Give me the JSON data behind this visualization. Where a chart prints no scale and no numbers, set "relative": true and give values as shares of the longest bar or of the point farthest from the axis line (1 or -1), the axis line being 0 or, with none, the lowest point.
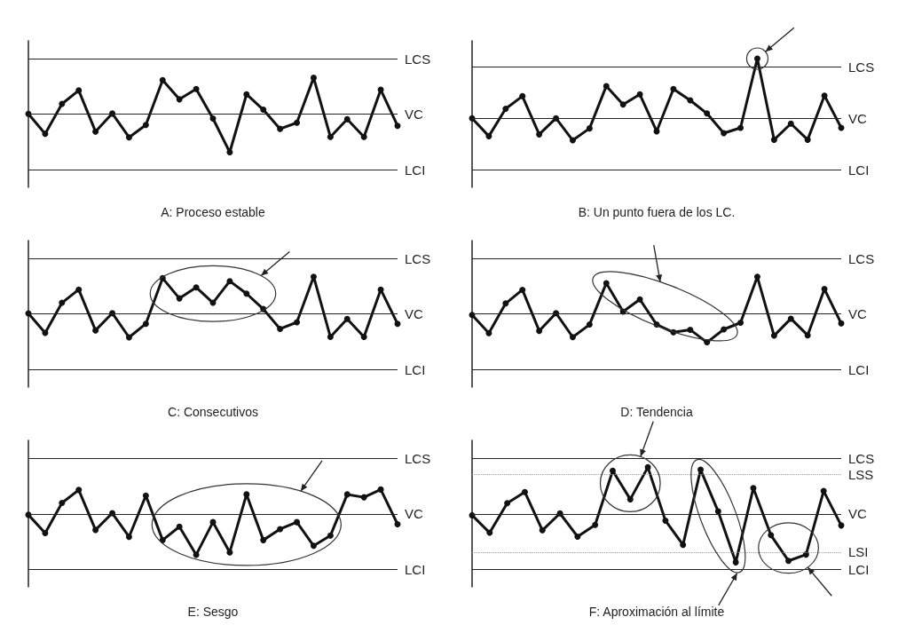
{
  "chart_data": [
    {
      "type": "line",
      "title": "A: Proceso estable",
      "relative": true,
      "marker": "circle",
      "color": "#111111",
      "categories": [
        null,
        null,
        null,
        null,
        null,
        null,
        null,
        null,
        null,
        null,
        null,
        null,
        null,
        null,
        null,
        null,
        null,
        null,
        null,
        null,
        null,
        null,
        null
      ],
      "values": [
        0,
        -0.52,
        0.26,
        0.61,
        -0.46,
        0.01,
        -0.61,
        -0.29,
        0.88,
        0.38,
        0.65,
        -0.12,
        -1,
        0.51,
        0.11,
        -0.39,
        -0.23,
        0.94,
        -0.6,
        -0.14,
        -0.6,
        0.63,
        -0.31
      ],
      "ref_lines": [
        {
          "axis": "y",
          "value": 1.44,
          "label": "LCS"
        },
        {
          "axis": "y",
          "value": 0,
          "label": "VC"
        },
        {
          "axis": "y",
          "value": -1.45,
          "label": "LCI"
        }
      ]
    },
    {
      "type": "line",
      "title": "B: Un punto fuera de los LC.",
      "relative": true,
      "marker": "circle",
      "color": "#111111",
      "categories": [
        null,
        null,
        null,
        null,
        null,
        null,
        null,
        null,
        null,
        null,
        null,
        null,
        null,
        null,
        null,
        null,
        null,
        null,
        null,
        null,
        null,
        null,
        null
      ],
      "values": [
        0,
        -0.3,
        0.16,
        0.37,
        -0.27,
        0,
        -0.37,
        -0.17,
        0.54,
        0.23,
        0.4,
        -0.22,
        0.49,
        0.3,
        0.08,
        -0.25,
        -0.16,
        1,
        -0.36,
        -0.09,
        -0.36,
        0.38,
        -0.16
      ],
      "ref_lines": [
        {
          "axis": "y",
          "value": 0.86,
          "label": "LCS"
        },
        {
          "axis": "y",
          "value": 0,
          "label": "VC"
        },
        {
          "axis": "y",
          "value": -0.86,
          "label": "LCI"
        }
      ]
    },
    {
      "type": "line",
      "title": "C: Consecutivos",
      "relative": true,
      "marker": "circle",
      "color": "#111111",
      "categories": [
        null,
        null,
        null,
        null,
        null,
        null,
        null,
        null,
        null,
        null,
        null,
        null,
        null,
        null,
        null,
        null,
        null,
        null,
        null,
        null,
        null,
        null,
        null
      ],
      "values": [
        0,
        -0.53,
        0.29,
        0.65,
        -0.46,
        0.01,
        -0.65,
        -0.28,
        0.96,
        0.41,
        0.71,
        0.29,
        0.88,
        0.54,
        0.12,
        -0.42,
        -0.24,
        1,
        -0.64,
        -0.15,
        -0.64,
        0.65,
        -0.28
      ],
      "ref_lines": [
        {
          "axis": "y",
          "value": 1.5,
          "label": "LCS"
        },
        {
          "axis": "y",
          "value": 0,
          "label": "VC"
        },
        {
          "axis": "y",
          "value": -1.52,
          "label": "LCI"
        }
      ]
    },
    {
      "type": "line",
      "title": "D: Tendencia",
      "relative": true,
      "marker": "circle",
      "color": "#111111",
      "categories": [
        null,
        null,
        null,
        null,
        null,
        null,
        null,
        null,
        null,
        null,
        null,
        null,
        null,
        null,
        null,
        null,
        null,
        null,
        null,
        null,
        null,
        null,
        null
      ],
      "values": [
        -0.03,
        -0.52,
        0.28,
        0.65,
        -0.46,
        0.02,
        -0.63,
        -0.29,
        0.83,
        0.06,
        0.39,
        -0.29,
        -0.5,
        -0.43,
        -0.77,
        -0.42,
        -0.24,
        1,
        -0.59,
        -0.13,
        -0.58,
        0.67,
        -0.26
      ],
      "ref_lines": [
        {
          "axis": "y",
          "value": 1.5,
          "label": "LCS"
        },
        {
          "axis": "y",
          "value": 0,
          "label": "VC"
        },
        {
          "axis": "y",
          "value": -1.5,
          "label": "LCI"
        }
      ]
    },
    {
      "type": "line",
      "title": "E: Sesgo",
      "relative": true,
      "marker": "circle",
      "color": "#111111",
      "categories": [
        null,
        null,
        null,
        null,
        null,
        null,
        null,
        null,
        null,
        null,
        null,
        null,
        null,
        null,
        null,
        null,
        null,
        null,
        null,
        null,
        null,
        null,
        null
      ],
      "values": [
        -0.02,
        -0.47,
        0.27,
        0.59,
        -0.39,
        0.02,
        -0.56,
        0.45,
        -0.64,
        -0.31,
        -1,
        -0.2,
        -0.94,
        0.48,
        -0.64,
        -0.37,
        -0.2,
        -0.78,
        -0.53,
        0.48,
        0.41,
        0.6,
        -0.25
      ],
      "ref_lines": [
        {
          "axis": "y",
          "value": 1.37,
          "label": "LCS"
        },
        {
          "axis": "y",
          "value": 0,
          "label": "VC"
        },
        {
          "axis": "y",
          "value": -1.35,
          "label": "LCI"
        }
      ]
    },
    {
      "type": "line",
      "title": "F: Aproximación al límite",
      "relative": true,
      "marker": "circle",
      "color": "#111111",
      "categories": [
        null,
        null,
        null,
        null,
        null,
        null,
        null,
        null,
        null,
        null,
        null,
        null,
        null,
        null,
        null,
        null,
        null,
        null,
        null,
        null,
        null,
        null
      ],
      "values": [
        -0.03,
        -0.39,
        0.22,
        0.45,
        -0.34,
        0.01,
        -0.47,
        -0.23,
        0.89,
        0.3,
        0.96,
        -0.14,
        -0.64,
        0.91,
        0.05,
        -1,
        0.53,
        -0.44,
        -0.97,
        -0.84,
        0.47,
        -0.24
      ],
      "ref_lines": [
        {
          "axis": "y",
          "value": 1.15,
          "label": "LCS"
        },
        {
          "axis": "y",
          "value": 0.81,
          "label": "LSS",
          "line_style": "dotted",
          "color": "#999999"
        },
        {
          "axis": "y",
          "value": 0,
          "label": "VC"
        },
        {
          "axis": "y",
          "value": -0.79,
          "label": "LSI",
          "line_style": "dotted",
          "color": "#999999"
        },
        {
          "axis": "y",
          "value": -1.14,
          "label": "LCI"
        }
      ]
    }
  ]
}
